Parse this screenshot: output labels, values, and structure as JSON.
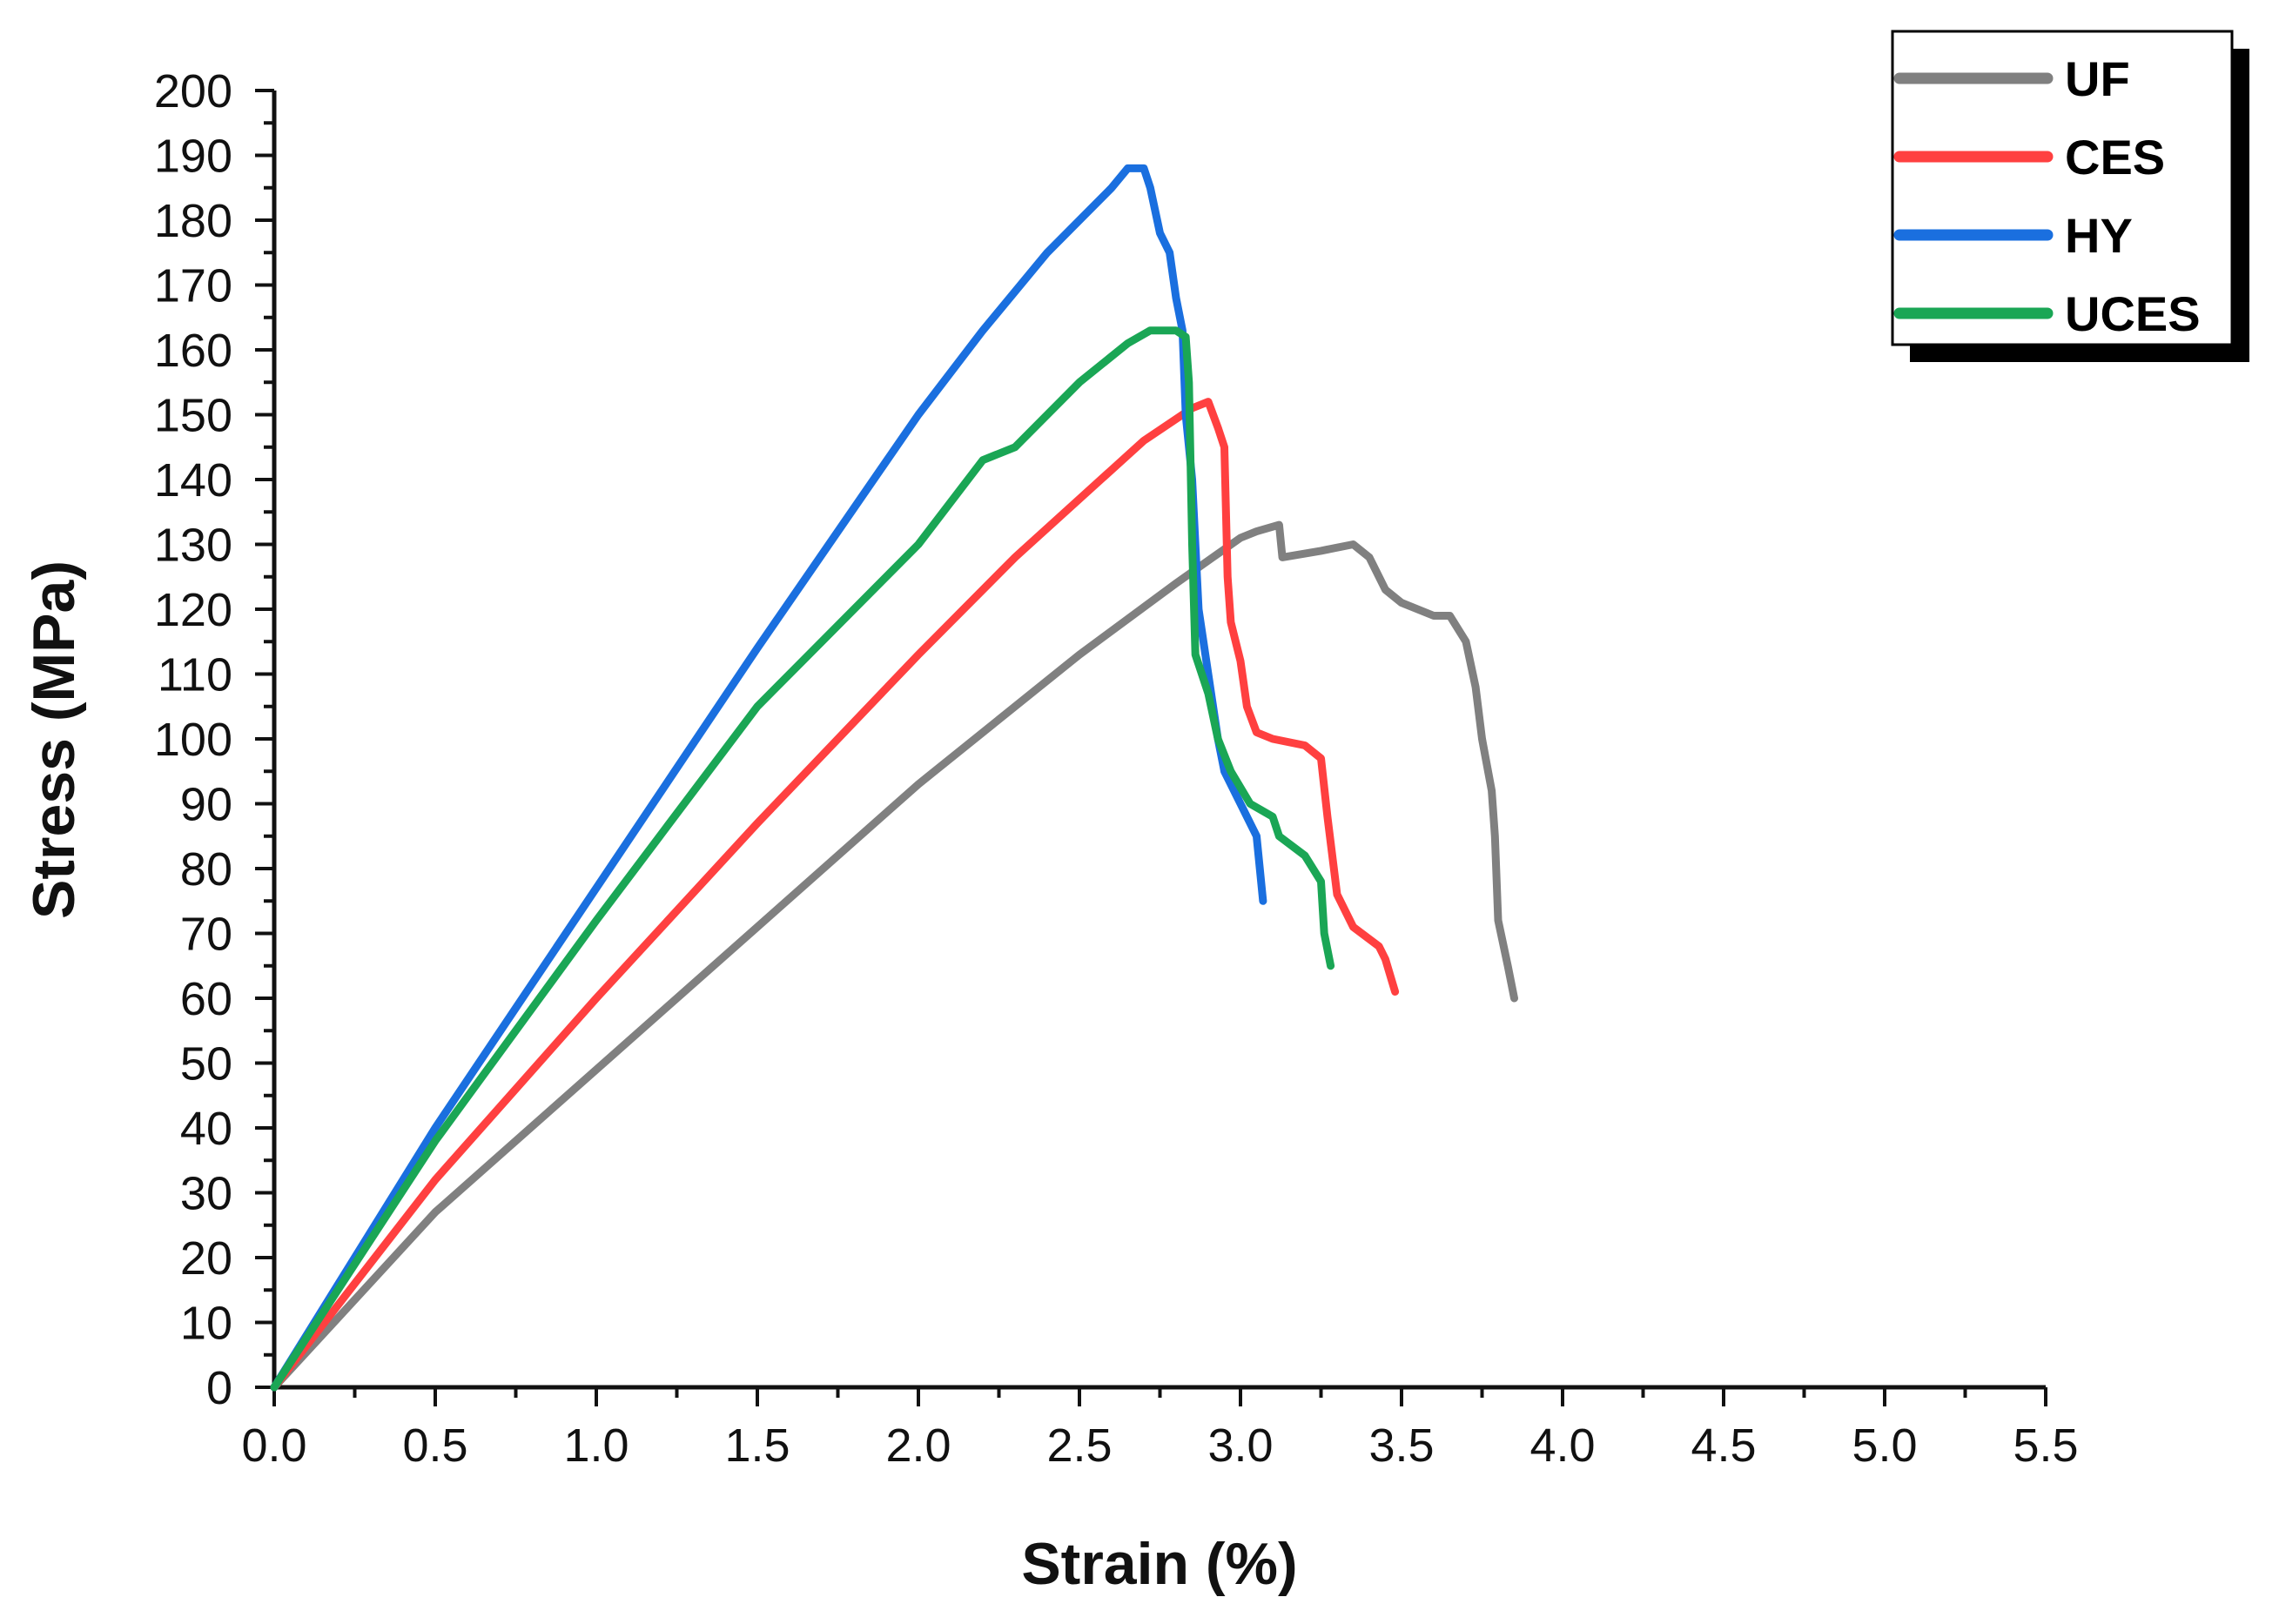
{
  "chart_data": {
    "type": "line",
    "title": "",
    "xlabel": "Strain (%)",
    "ylabel": "Stress (MPa)",
    "xlim": [
      0,
      5.5
    ],
    "ylim": [
      0,
      200
    ],
    "x_major_step": 0.5,
    "x_minor_step": 0.25,
    "y_major_step": 10,
    "x_tick_labels": [
      "0.0",
      "0.5",
      "1.0",
      "1.5",
      "2.0",
      "2.5",
      "3.0",
      "3.5",
      "4.0",
      "4.5",
      "5.0",
      "5.5"
    ],
    "y_tick_labels": [
      "0",
      "10",
      "20",
      "30",
      "40",
      "50",
      "60",
      "70",
      "80",
      "90",
      "100",
      "110",
      "120",
      "130",
      "140",
      "150",
      "160",
      "170",
      "180",
      "190",
      "200"
    ],
    "grid": false,
    "legend_position": "top-right",
    "series": [
      {
        "name": "UF",
        "color": "#808080",
        "points": [
          [
            0,
            0
          ],
          [
            0.5,
            27
          ],
          [
            1.0,
            49
          ],
          [
            1.5,
            71
          ],
          [
            2.0,
            93
          ],
          [
            2.5,
            113
          ],
          [
            2.8,
            124
          ],
          [
            3.0,
            131
          ],
          [
            3.05,
            132
          ],
          [
            3.12,
            133
          ],
          [
            3.13,
            128
          ],
          [
            3.25,
            129
          ],
          [
            3.35,
            130
          ],
          [
            3.4,
            128
          ],
          [
            3.45,
            123
          ],
          [
            3.5,
            121
          ],
          [
            3.6,
            119
          ],
          [
            3.65,
            119
          ],
          [
            3.7,
            115
          ],
          [
            3.73,
            108
          ],
          [
            3.75,
            100
          ],
          [
            3.78,
            92
          ],
          [
            3.79,
            85
          ],
          [
            3.8,
            72
          ],
          [
            3.83,
            65
          ],
          [
            3.85,
            60
          ]
        ]
      },
      {
        "name": "CES",
        "color": "#ff4040",
        "points": [
          [
            0,
            0
          ],
          [
            0.5,
            32
          ],
          [
            1.0,
            60
          ],
          [
            1.5,
            87
          ],
          [
            2.0,
            113
          ],
          [
            2.3,
            128
          ],
          [
            2.5,
            137
          ],
          [
            2.7,
            146
          ],
          [
            2.85,
            151
          ],
          [
            2.9,
            152
          ],
          [
            2.93,
            148
          ],
          [
            2.95,
            145
          ],
          [
            2.96,
            125
          ],
          [
            2.97,
            118
          ],
          [
            3.0,
            112
          ],
          [
            3.02,
            105
          ],
          [
            3.05,
            101
          ],
          [
            3.1,
            100
          ],
          [
            3.2,
            99
          ],
          [
            3.25,
            97
          ],
          [
            3.27,
            88
          ],
          [
            3.3,
            76
          ],
          [
            3.35,
            71
          ],
          [
            3.43,
            68
          ],
          [
            3.45,
            66
          ],
          [
            3.48,
            61
          ]
        ]
      },
      {
        "name": "HY",
        "color": "#1a6fdf",
        "points": [
          [
            0,
            0
          ],
          [
            0.5,
            40
          ],
          [
            1.0,
            77
          ],
          [
            1.5,
            114
          ],
          [
            2.0,
            150
          ],
          [
            2.2,
            163
          ],
          [
            2.4,
            175
          ],
          [
            2.6,
            185
          ],
          [
            2.65,
            188
          ],
          [
            2.7,
            188
          ],
          [
            2.72,
            185
          ],
          [
            2.75,
            178
          ],
          [
            2.78,
            175
          ],
          [
            2.8,
            168
          ],
          [
            2.82,
            163
          ],
          [
            2.83,
            150
          ],
          [
            2.85,
            140
          ],
          [
            2.87,
            120
          ],
          [
            2.9,
            110
          ],
          [
            2.93,
            100
          ],
          [
            2.95,
            95
          ],
          [
            3.0,
            90
          ],
          [
            3.05,
            85
          ],
          [
            3.06,
            80
          ],
          [
            3.07,
            75
          ]
        ]
      },
      {
        "name": "UCES",
        "color": "#1aa655",
        "points": [
          [
            0,
            0
          ],
          [
            0.5,
            38
          ],
          [
            1.0,
            72
          ],
          [
            1.5,
            105
          ],
          [
            2.0,
            130
          ],
          [
            2.2,
            143
          ],
          [
            2.3,
            145
          ],
          [
            2.5,
            155
          ],
          [
            2.65,
            161
          ],
          [
            2.72,
            163
          ],
          [
            2.8,
            163
          ],
          [
            2.83,
            162
          ],
          [
            2.84,
            155
          ],
          [
            2.85,
            130
          ],
          [
            2.86,
            113
          ],
          [
            2.9,
            107
          ],
          [
            2.93,
            100
          ],
          [
            2.97,
            95
          ],
          [
            3.03,
            90
          ],
          [
            3.1,
            88
          ],
          [
            3.12,
            85
          ],
          [
            3.2,
            82
          ],
          [
            3.25,
            78
          ],
          [
            3.26,
            70
          ],
          [
            3.28,
            65
          ]
        ]
      }
    ]
  }
}
